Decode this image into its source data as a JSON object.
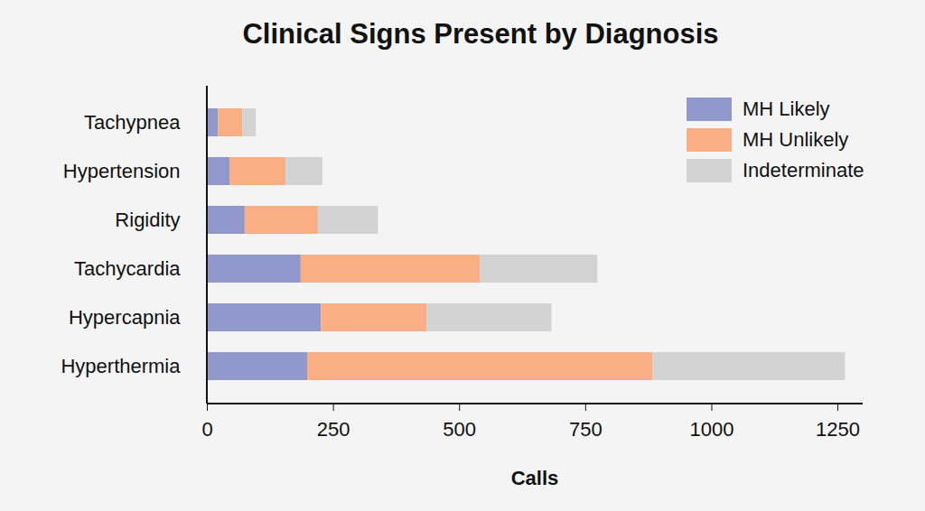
{
  "chart_data": {
    "type": "bar",
    "title": "Clinical Signs Present by Diagnosis",
    "orientation": "horizontal",
    "stacked": true,
    "categories": [
      "Tachypnea",
      "Hypertension",
      "Rigidity",
      "Tachycardia",
      "Hypercapnia",
      "Hyperthermia"
    ],
    "series": [
      {
        "name": "MH Likely",
        "color": "#9199cc",
        "values": [
          22,
          45,
          75,
          186,
          226,
          199
        ]
      },
      {
        "name": "MH Unlikely",
        "color": "#f9ae83",
        "values": [
          48,
          111,
          145,
          355,
          209,
          684
        ]
      },
      {
        "name": "Indeterminate",
        "color": "#d3d3d3",
        "values": [
          27,
          73,
          119,
          233,
          248,
          382
        ]
      }
    ],
    "xlabel": "Calls",
    "xlim": [
      0,
      1300
    ],
    "xticks": [
      0,
      250,
      500,
      750,
      1000,
      1250
    ],
    "grid": false,
    "legend": "top-right"
  }
}
